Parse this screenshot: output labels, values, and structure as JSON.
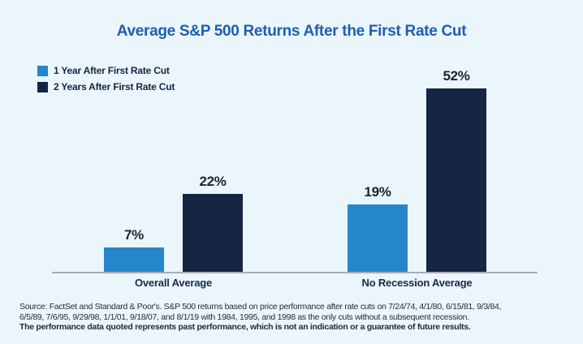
{
  "title": "Average S&P 500 Returns After the First Rate Cut",
  "colors": {
    "background": "#EBF5FC",
    "title": "#1D5FB0",
    "series1": "#2586CA",
    "series2": "#152642",
    "axis": "#A8ACB4",
    "value_label": "#1A2433",
    "footer_text": "#262C39"
  },
  "chart_data": {
    "type": "bar",
    "categories": [
      "Overall Average",
      "No Recession Average"
    ],
    "series": [
      {
        "name": "1 Year After First Rate Cut",
        "values": [
          7,
          19
        ],
        "labels": [
          "7%",
          "19%"
        ],
        "color": "#2586CA"
      },
      {
        "name": "2 Years After First Rate Cut",
        "values": [
          22,
          52
        ],
        "labels": [
          "22%",
          "52%"
        ],
        "color": "#152642"
      }
    ],
    "value_suffix": "%",
    "ylim": [
      0,
      55
    ],
    "grid": false,
    "legend_position": "top-left",
    "xlabel": "",
    "ylabel": ""
  },
  "footer": {
    "line1": "Source: FactSet and Standard & Poor's. S&P 500 returns based on price performance after rate cuts on 7/24/74, 4/1/80, 6/15/81, 9/3/84,",
    "line2": "6/5/89, 7/6/95, 9/29/98, 1/1/01, 9/18/07, and 8/1/19 with 1984, 1995, and 1998 as the only cuts without a subsequent recession.",
    "line3": "The performance data quoted represents past performance, which is not an indication or a guarantee of future results."
  }
}
